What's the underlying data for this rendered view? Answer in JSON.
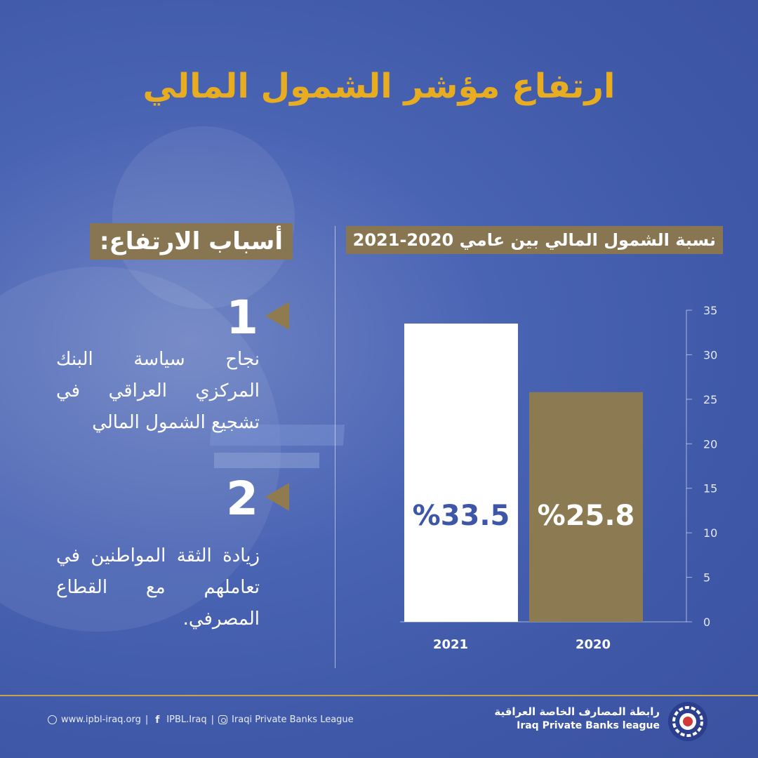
{
  "title": "ارتفاع مؤشر الشمول المالي",
  "reasons": {
    "title": "أسباب الارتفاع:",
    "items": [
      {
        "number": "1",
        "text": "نجاح سياسة البنك المركزي العراقي في تشجيع الشمول المالي"
      },
      {
        "number": "2",
        "text": "زيادة الثقة المواطنين في تعاملهم مع القطاع المصرفي."
      }
    ]
  },
  "chart_data": {
    "type": "bar",
    "title": "نسبة الشمول المالي بين عامي 2020-2021",
    "categories": [
      "2021",
      "2020"
    ],
    "values": [
      33.5,
      25.8
    ],
    "value_labels": [
      "%33.5",
      "%25.8"
    ],
    "ylim": [
      0,
      35
    ],
    "yticks": [
      0,
      5,
      10,
      15,
      20,
      25,
      30,
      35
    ],
    "y_axis_position": "right",
    "grid": false,
    "bar_colors": [
      "#ffffff",
      "#8c7a52"
    ],
    "label_colors": [
      "#3d56a8",
      "#ffffff"
    ]
  },
  "footer": {
    "website": "www.ipbl-iraq.org",
    "facebook": "IPBL.Iraq",
    "instagram": "Iraqi Private Banks League",
    "org_name_ar": "رابطة المصارف الخاصة العراقية",
    "org_name_en": "Iraq Private Banks league"
  },
  "colors": {
    "background": "#4a64b4",
    "accent_gold": "#e8ac21",
    "label_bg": "#877651"
  }
}
